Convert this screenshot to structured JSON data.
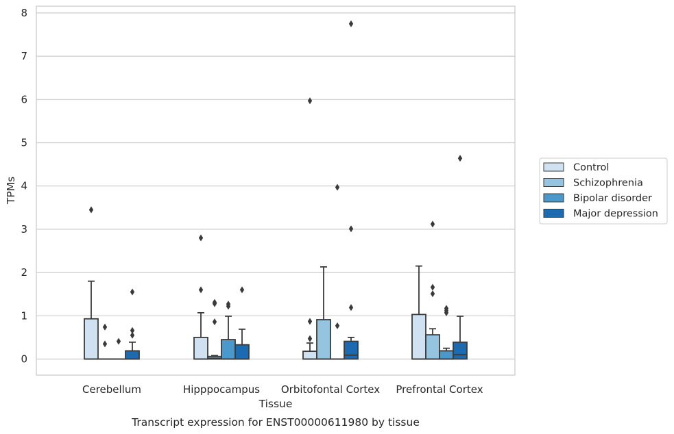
{
  "chart_data": {
    "type": "box",
    "xlabel": "Tissue",
    "ylabel": "TPMs",
    "caption": "Transcript expression for ENST00000611980 by tissue",
    "ylim": [
      -0.38,
      8.15
    ],
    "yticks": [
      0,
      1,
      2,
      3,
      4,
      5,
      6,
      7,
      8
    ],
    "grid": "horizontal",
    "legend_position": "right",
    "categories": [
      "Cerebellum",
      "Hipppocampus",
      "Orbitofontal Cortex",
      "Prefrontal Cortex"
    ],
    "series": [
      {
        "name": "Control",
        "color": "#d0e1f2",
        "boxes": [
          {
            "q1": 0.0,
            "median": 0.0,
            "q3": 0.93,
            "whisker_low": 0.0,
            "whisker_high": 1.8,
            "outliers": [
              3.45
            ]
          },
          {
            "q1": 0.0,
            "median": 0.0,
            "q3": 0.5,
            "whisker_low": 0.0,
            "whisker_high": 1.07,
            "outliers": [
              1.6,
              2.8
            ]
          },
          {
            "q1": 0.0,
            "median": 0.0,
            "q3": 0.18,
            "whisker_low": 0.0,
            "whisker_high": 0.37,
            "outliers": [
              0.47,
              0.87,
              5.97
            ]
          },
          {
            "q1": 0.0,
            "median": 0.0,
            "q3": 1.03,
            "whisker_low": 0.0,
            "whisker_high": 2.15,
            "outliers": []
          }
        ]
      },
      {
        "name": "Schizophrenia",
        "color": "#94c4df",
        "boxes": [
          {
            "q1": 0.0,
            "median": 0.0,
            "q3": 0.0,
            "whisker_low": 0.0,
            "whisker_high": 0.0,
            "outliers": [
              0.35,
              0.74
            ]
          },
          {
            "q1": 0.0,
            "median": 0.02,
            "q3": 0.06,
            "whisker_low": 0.0,
            "whisker_high": 0.08,
            "outliers": [
              0.86,
              1.28,
              1.31
            ]
          },
          {
            "q1": 0.0,
            "median": 0.0,
            "q3": 0.91,
            "whisker_low": 0.0,
            "whisker_high": 2.13,
            "outliers": []
          },
          {
            "q1": 0.0,
            "median": 0.0,
            "q3": 0.56,
            "whisker_low": 0.0,
            "whisker_high": 0.7,
            "outliers": [
              1.51,
              1.66,
              3.12
            ]
          }
        ]
      },
      {
        "name": "Bipolar disorder",
        "color": "#4b98ca",
        "boxes": [
          {
            "q1": 0.0,
            "median": 0.0,
            "q3": 0.0,
            "whisker_low": 0.0,
            "whisker_high": 0.0,
            "outliers": [
              0.41
            ]
          },
          {
            "q1": 0.0,
            "median": 0.0,
            "q3": 0.45,
            "whisker_low": 0.0,
            "whisker_high": 0.99,
            "outliers": [
              1.22,
              1.27
            ]
          },
          {
            "q1": 0.0,
            "median": 0.0,
            "q3": 0.0,
            "whisker_low": 0.0,
            "whisker_high": 0.0,
            "outliers": [
              0.77,
              3.97
            ]
          },
          {
            "q1": 0.0,
            "median": 0.0,
            "q3": 0.19,
            "whisker_low": 0.0,
            "whisker_high": 0.25,
            "outliers": [
              1.07,
              1.12,
              1.17
            ]
          }
        ]
      },
      {
        "name": "Major depression",
        "color": "#1c6aaf",
        "boxes": [
          {
            "q1": 0.0,
            "median": 0.0,
            "q3": 0.19,
            "whisker_low": 0.0,
            "whisker_high": 0.39,
            "outliers": [
              0.55,
              0.66,
              1.55
            ]
          },
          {
            "q1": 0.0,
            "median": 0.0,
            "q3": 0.33,
            "whisker_low": 0.0,
            "whisker_high": 0.69,
            "outliers": [
              1.6
            ]
          },
          {
            "q1": 0.0,
            "median": 0.09,
            "q3": 0.41,
            "whisker_low": 0.0,
            "whisker_high": 0.5,
            "outliers": [
              1.19,
              3.01,
              7.75
            ]
          },
          {
            "q1": 0.0,
            "median": 0.1,
            "q3": 0.39,
            "whisker_low": 0.0,
            "whisker_high": 0.99,
            "outliers": [
              4.64
            ]
          }
        ]
      }
    ]
  }
}
